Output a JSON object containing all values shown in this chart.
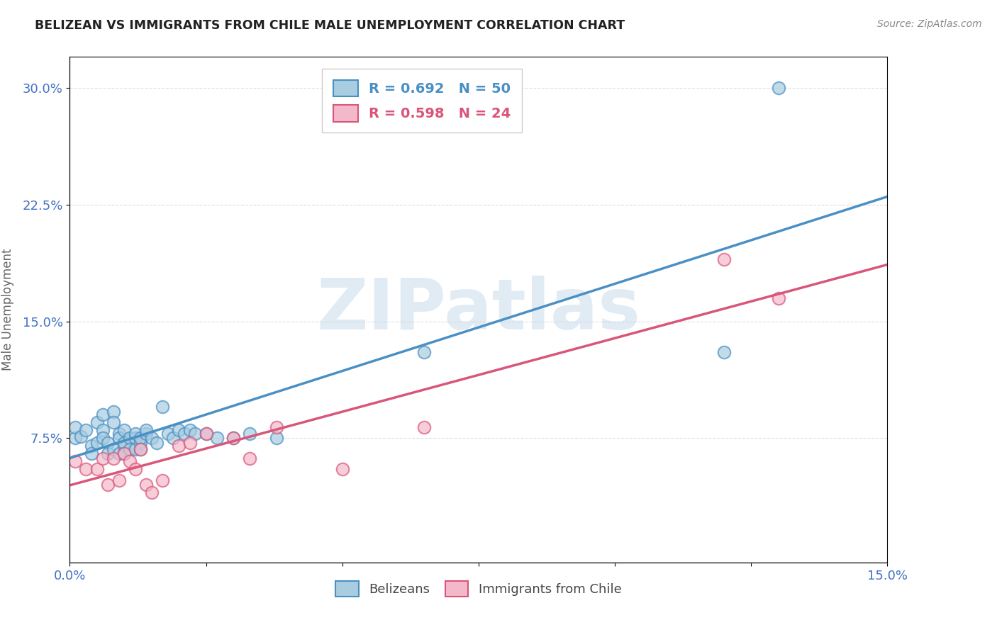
{
  "title": "BELIZEAN VS IMMIGRANTS FROM CHILE MALE UNEMPLOYMENT CORRELATION CHART",
  "source": "Source: ZipAtlas.com",
  "ylabel": "Male Unemployment",
  "xlim": [
    0.0,
    0.15
  ],
  "ylim": [
    -0.005,
    0.32
  ],
  "yticks": [
    0.075,
    0.15,
    0.225,
    0.3
  ],
  "ytick_labels": [
    "7.5%",
    "15.0%",
    "22.5%",
    "30.0%"
  ],
  "xticks": [
    0.0,
    0.025,
    0.05,
    0.075,
    0.1,
    0.125,
    0.15
  ],
  "xtick_labels": [
    "0.0%",
    "",
    "",
    "",
    "",
    "",
    "15.0%"
  ],
  "belizean_R": 0.692,
  "belizean_N": 50,
  "chile_R": 0.598,
  "chile_N": 24,
  "belizean_color": "#a8cce0",
  "chile_color": "#f4b8cb",
  "belizean_line_color": "#4a90c4",
  "chile_line_color": "#d9567a",
  "watermark": "ZIPatlas",
  "belizean_x": [
    0.001,
    0.001,
    0.002,
    0.003,
    0.004,
    0.004,
    0.005,
    0.005,
    0.006,
    0.006,
    0.006,
    0.007,
    0.007,
    0.008,
    0.008,
    0.008,
    0.009,
    0.009,
    0.009,
    0.01,
    0.01,
    0.01,
    0.01,
    0.011,
    0.011,
    0.012,
    0.012,
    0.012,
    0.013,
    0.013,
    0.013,
    0.014,
    0.014,
    0.015,
    0.016,
    0.017,
    0.018,
    0.019,
    0.02,
    0.021,
    0.022,
    0.023,
    0.025,
    0.027,
    0.03,
    0.033,
    0.038,
    0.065,
    0.12,
    0.13
  ],
  "belizean_y": [
    0.075,
    0.082,
    0.076,
    0.08,
    0.07,
    0.065,
    0.085,
    0.072,
    0.09,
    0.08,
    0.075,
    0.072,
    0.065,
    0.092,
    0.085,
    0.068,
    0.078,
    0.075,
    0.065,
    0.07,
    0.072,
    0.065,
    0.08,
    0.075,
    0.068,
    0.075,
    0.068,
    0.078,
    0.072,
    0.075,
    0.068,
    0.078,
    0.08,
    0.075,
    0.072,
    0.095,
    0.078,
    0.075,
    0.08,
    0.078,
    0.08,
    0.078,
    0.078,
    0.075,
    0.075,
    0.078,
    0.075,
    0.13,
    0.13,
    0.3
  ],
  "chile_x": [
    0.001,
    0.003,
    0.005,
    0.006,
    0.007,
    0.008,
    0.009,
    0.01,
    0.011,
    0.012,
    0.013,
    0.014,
    0.015,
    0.017,
    0.02,
    0.022,
    0.025,
    0.03,
    0.033,
    0.038,
    0.05,
    0.065,
    0.12,
    0.13
  ],
  "chile_y": [
    0.06,
    0.055,
    0.055,
    0.062,
    0.045,
    0.062,
    0.048,
    0.065,
    0.06,
    0.055,
    0.068,
    0.045,
    0.04,
    0.048,
    0.07,
    0.072,
    0.078,
    0.075,
    0.062,
    0.082,
    0.055,
    0.082,
    0.19,
    0.165
  ],
  "background_color": "#ffffff",
  "grid_color": "#dddddd"
}
